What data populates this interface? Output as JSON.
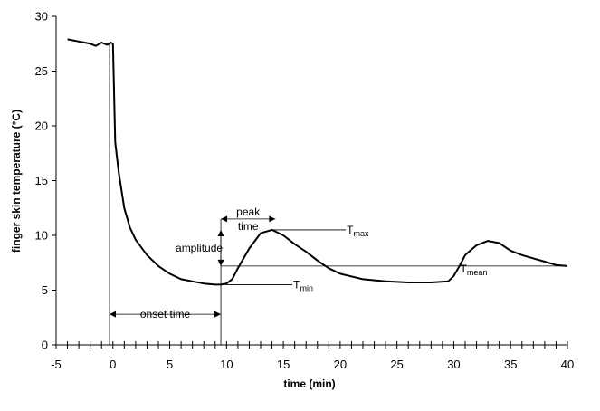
{
  "chart_data": {
    "type": "line",
    "xlabel": "time (min)",
    "ylabel": "finger skin temperature (°C)",
    "xlim": [
      -5,
      40
    ],
    "ylim": [
      0,
      30
    ],
    "x_ticks": [
      -5,
      0,
      5,
      10,
      15,
      20,
      25,
      30,
      35,
      40
    ],
    "y_ticks": [
      0,
      5,
      10,
      15,
      20,
      25,
      30
    ],
    "x_tick_labels": [
      "-5",
      "0",
      "5",
      "10",
      "15",
      "20",
      "25",
      "30",
      "35",
      "40"
    ],
    "y_tick_labels": [
      "0",
      "5",
      "10",
      "15",
      "20",
      "25",
      "30"
    ],
    "grid": false,
    "series": [
      {
        "x": [
          -4.0,
          -3.5,
          -3.0,
          -2.5,
          -2.0,
          -1.5,
          -1.0,
          -0.5,
          -0.2,
          0.0,
          0.2,
          0.5,
          1.0,
          1.5,
          2.0,
          3.0,
          4.0,
          5.0,
          6.0,
          7.0,
          8.0,
          9.0,
          9.5,
          10.0,
          10.5,
          11.0,
          12.0,
          13.0,
          14.0,
          15.0,
          16.0,
          17.0,
          18.0,
          19.0,
          20.0,
          22.0,
          24.0,
          26.0,
          28.0,
          29.5,
          30.0,
          30.5,
          31.0,
          32.0,
          33.0,
          34.0,
          35.0,
          36.0,
          37.0,
          38.0,
          39.0,
          40.0
        ],
        "y": [
          27.9,
          27.8,
          27.7,
          27.6,
          27.5,
          27.3,
          27.6,
          27.4,
          27.6,
          27.5,
          18.5,
          15.8,
          12.5,
          10.7,
          9.6,
          8.2,
          7.2,
          6.5,
          6.0,
          5.8,
          5.6,
          5.5,
          5.5,
          5.6,
          6.0,
          7.0,
          8.8,
          10.2,
          10.5,
          10.0,
          9.2,
          8.5,
          7.7,
          7.0,
          6.5,
          6.0,
          5.8,
          5.7,
          5.7,
          5.8,
          6.3,
          7.2,
          8.2,
          9.1,
          9.5,
          9.3,
          8.6,
          8.2,
          7.9,
          7.6,
          7.3,
          7.2
        ]
      }
    ],
    "annotations": {
      "peak_time": {
        "line1": "peak",
        "line2": "time",
        "x_from": 9.5,
        "x_to": 14.3,
        "y": 11.5
      },
      "amplitude": {
        "label": "amplitude",
        "x": 9.5,
        "y_from": 7.2,
        "y_to": 10.5
      },
      "onset_time": {
        "label": "onset time",
        "x_from": -0.3,
        "x_to": 9.5,
        "y": 2.8
      },
      "t_max": {
        "main": "T",
        "sub": "max",
        "y": 10.5,
        "x_from": 14.0,
        "x_to": 20.5
      },
      "t_min": {
        "main": "T",
        "sub": "min",
        "y": 5.5,
        "x_from": 9.8,
        "x_to": 15.8
      },
      "t_mean": {
        "main": "T",
        "sub": "mean",
        "y": 7.2,
        "x_from": 9.5,
        "x_to": 40.0
      },
      "vertical_markers": [
        {
          "x": -0.3,
          "y_from": 0,
          "y_to": 27.5
        },
        {
          "x": 9.5,
          "y_from": 0,
          "y_to": 11.5
        }
      ]
    }
  }
}
